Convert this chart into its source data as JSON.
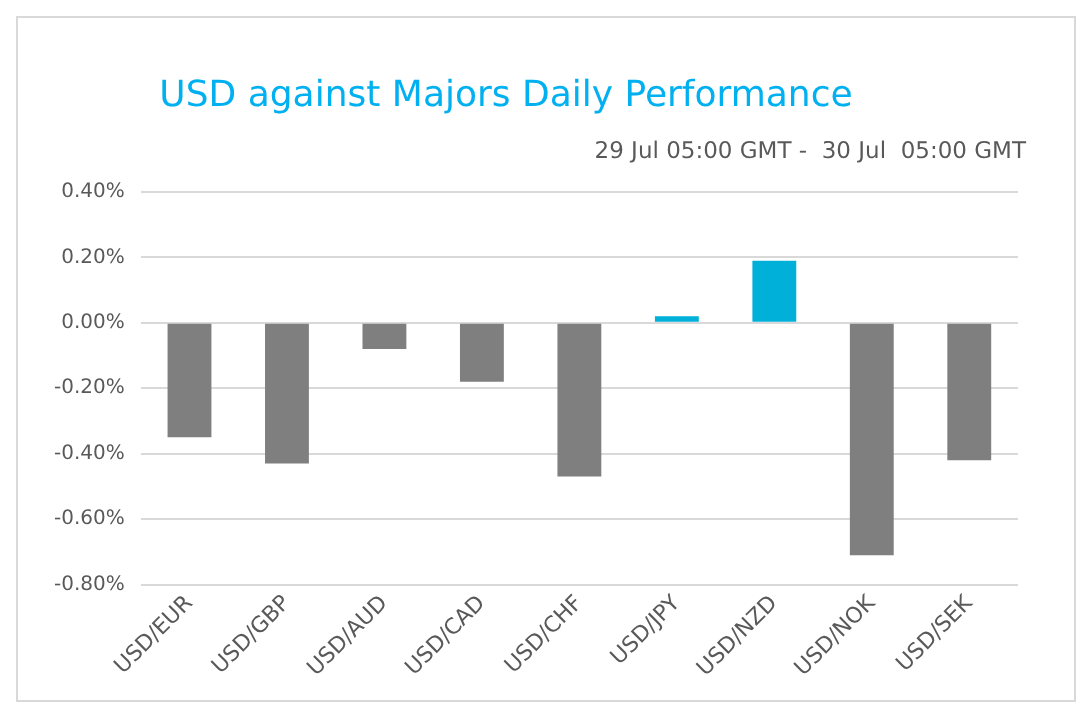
{
  "chart_data": {
    "type": "bar",
    "title": "USD against Majors Daily Performance",
    "subtitle": "29 Jul 05:00 GMT -  30 Jul  05:00 GMT",
    "categories": [
      "USD/EUR",
      "USD/GBP",
      "USD/AUD",
      "USD/CAD",
      "USD/CHF",
      "USD/JPY",
      "USD/NZD",
      "USD/NOK",
      "USD/SEK"
    ],
    "values": [
      -0.35,
      -0.43,
      -0.08,
      -0.18,
      -0.47,
      0.02,
      0.19,
      -0.71,
      -0.42
    ],
    "colors": [
      "#7f7f7f",
      "#7f7f7f",
      "#7f7f7f",
      "#7f7f7f",
      "#7f7f7f",
      "#00b0d8",
      "#00b0d8",
      "#7f7f7f",
      "#7f7f7f"
    ],
    "ylim": [
      -0.8,
      0.4
    ],
    "yticks": [
      {
        "value": -0.8,
        "label": "-0.80%"
      },
      {
        "value": -0.6,
        "label": "-0.60%"
      },
      {
        "value": -0.4,
        "label": "-0.40%"
      },
      {
        "value": -0.2,
        "label": "-0.20%"
      },
      {
        "value": 0,
        "label": "0.00%"
      },
      {
        "value": 0.2,
        "label": "0.20%"
      },
      {
        "value": 0.4,
        "label": "0.40%"
      }
    ],
    "grid": "y"
  }
}
